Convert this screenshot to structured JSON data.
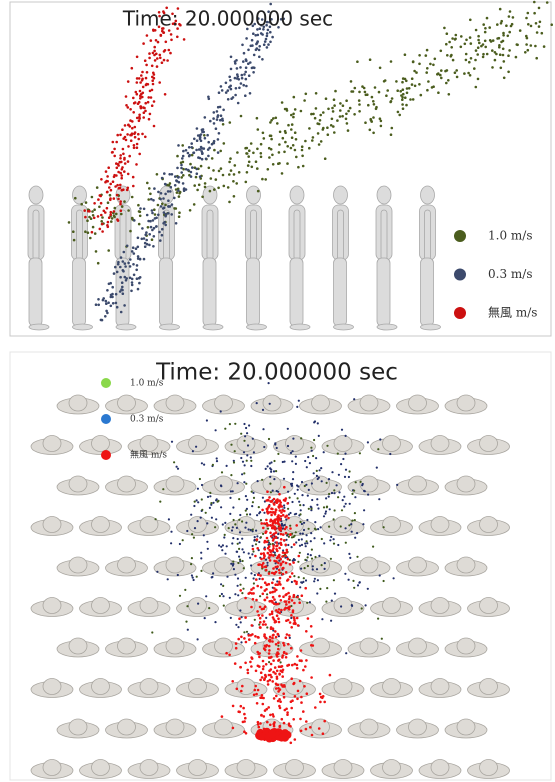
{
  "panels": [
    {
      "title": "Time: 20.000000 sec",
      "legend": [
        {
          "label": "1.0 m/s",
          "color": "#4b5d1e"
        },
        {
          "label": "0.3 m/s",
          "color": "#3c4a6c"
        },
        {
          "label": "無風 m/s",
          "color": "#cc1010"
        }
      ]
    },
    {
      "title": "Time: 20.000000 sec",
      "legend": [
        {
          "label": "1.0 m/s",
          "color": "#8ad84a"
        },
        {
          "label": "0.3 m/s",
          "color": "#2a78d0"
        },
        {
          "label": "無風 m/s",
          "color": "#ee1414"
        }
      ]
    }
  ]
}
